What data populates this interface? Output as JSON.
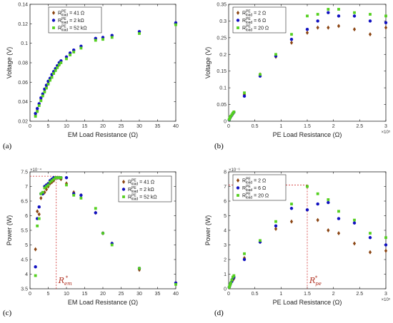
{
  "colors": {
    "s1": "#8B4513",
    "s2": "#1010c0",
    "s3": "#55d020",
    "guide": "#d03030"
  },
  "chart_data": [
    {
      "type": "scatter",
      "panel": "(a)",
      "xlabel": "EM Load Resistance (Ω)",
      "ylabel": "Voltage (V)",
      "xlim": [
        0,
        40
      ],
      "ylim": [
        0.02,
        0.14
      ],
      "xticks": [
        0,
        5,
        10,
        15,
        20,
        25,
        30,
        35,
        40
      ],
      "yticks": [
        0.02,
        0.04,
        0.06,
        0.08,
        0.1,
        0.12,
        0.14
      ],
      "ytick_labels": [
        "0.02",
        "0.04",
        "0.06",
        "0.08",
        "0.1",
        "0.12",
        "0.14"
      ],
      "legend_position": "top-left",
      "series": [
        {
          "name": "41 Ω",
          "color_key": "s1",
          "marker": "diamond",
          "x": [
            1.5,
            2,
            2.5,
            3,
            3.5,
            4,
            4.5,
            5,
            5.5,
            6,
            6.5,
            7,
            7.5,
            8,
            8.5,
            10,
            11,
            12,
            14,
            18,
            20,
            22.5,
            30,
            40
          ],
          "y": [
            0.026,
            0.031,
            0.037,
            0.042,
            0.047,
            0.051,
            0.055,
            0.059,
            0.063,
            0.066,
            0.07,
            0.073,
            0.076,
            0.078,
            0.081,
            0.085,
            0.089,
            0.092,
            0.096,
            0.104,
            0.105,
            0.107,
            0.111,
            0.12
          ]
        },
        {
          "name": "2 kΩ",
          "color_key": "s2",
          "marker": "circle",
          "x": [
            1.5,
            2,
            2.5,
            3,
            3.5,
            4,
            4.5,
            5,
            5.5,
            6,
            6.5,
            7,
            7.5,
            8,
            8.5,
            10,
            11,
            12,
            14,
            18,
            20,
            22.5,
            30,
            40
          ],
          "y": [
            0.028,
            0.033,
            0.038,
            0.044,
            0.048,
            0.053,
            0.057,
            0.061,
            0.064,
            0.068,
            0.071,
            0.074,
            0.077,
            0.08,
            0.082,
            0.086,
            0.09,
            0.093,
            0.097,
            0.105,
            0.106,
            0.108,
            0.112,
            0.121
          ]
        },
        {
          "name": "52 kΩ",
          "color_key": "s3",
          "marker": "square",
          "x": [
            1.5,
            2,
            2.5,
            3,
            3.5,
            4,
            4.5,
            5,
            5.5,
            6,
            6.5,
            7,
            7.5,
            8,
            8.5,
            10,
            11,
            12,
            14,
            18,
            20,
            22.5,
            30,
            40
          ],
          "y": [
            0.025,
            0.03,
            0.036,
            0.041,
            0.046,
            0.05,
            0.054,
            0.058,
            0.062,
            0.065,
            0.069,
            0.072,
            0.075,
            0.078,
            0.08,
            0.084,
            0.088,
            0.091,
            0.095,
            0.103,
            0.104,
            0.106,
            0.11,
            0.119
          ]
        }
      ]
    },
    {
      "type": "scatter",
      "panel": "(b)",
      "xlabel": "PE Load Resistance (Ω)",
      "ylabel": "Voltage (V)",
      "xlim": [
        0,
        3
      ],
      "ylim": [
        0,
        0.35
      ],
      "x_exponent": "×10⁵",
      "xticks": [
        0,
        0.5,
        1,
        1.5,
        2,
        2.5,
        3
      ],
      "yticks": [
        0,
        0.05,
        0.1,
        0.15,
        0.2,
        0.25,
        0.3,
        0.35
      ],
      "ytick_labels": [
        "0",
        "0.05",
        "0.1",
        "0.15",
        "0.2",
        "0.25",
        "0.3",
        "0.35"
      ],
      "legend_position": "top-left",
      "series": [
        {
          "name": "2 Ω",
          "color_key": "s1",
          "marker": "diamond",
          "x": [
            0.01,
            0.02,
            0.03,
            0.04,
            0.06,
            0.08,
            0.1,
            0.3,
            0.6,
            0.9,
            1.2,
            1.5,
            1.7,
            1.9,
            2.1,
            2.4,
            2.7,
            3.0
          ],
          "y": [
            0.004,
            0.007,
            0.01,
            0.013,
            0.017,
            0.022,
            0.026,
            0.08,
            0.14,
            0.193,
            0.235,
            0.265,
            0.28,
            0.28,
            0.285,
            0.275,
            0.26,
            0.28
          ]
        },
        {
          "name": "6 Ω",
          "color_key": "s2",
          "marker": "circle",
          "x": [
            0.01,
            0.02,
            0.03,
            0.04,
            0.06,
            0.08,
            0.1,
            0.3,
            0.6,
            0.9,
            1.2,
            1.5,
            1.7,
            1.9,
            2.1,
            2.4,
            2.7,
            3.0
          ],
          "y": [
            0.004,
            0.008,
            0.011,
            0.014,
            0.018,
            0.023,
            0.027,
            0.075,
            0.135,
            0.195,
            0.245,
            0.275,
            0.3,
            0.325,
            0.315,
            0.315,
            0.3,
            0.295
          ]
        },
        {
          "name": "20 Ω",
          "color_key": "s3",
          "marker": "square",
          "x": [
            0.01,
            0.02,
            0.03,
            0.04,
            0.06,
            0.08,
            0.1,
            0.3,
            0.6,
            0.9,
            1.2,
            1.5,
            1.7,
            1.9,
            2.1,
            2.4,
            2.7,
            3.0
          ],
          "y": [
            0.005,
            0.009,
            0.012,
            0.015,
            0.019,
            0.024,
            0.028,
            0.085,
            0.14,
            0.2,
            0.26,
            0.315,
            0.32,
            0.335,
            0.335,
            0.325,
            0.32,
            0.315
          ]
        }
      ]
    },
    {
      "type": "scatter",
      "panel": "(c)",
      "xlabel": "EM Load Resistance (Ω)",
      "ylabel": "Power (W)",
      "xlim": [
        0,
        40
      ],
      "ylim": [
        3.5,
        7.5
      ],
      "y_exponent": "×10⁻⁴",
      "xticks": [
        0,
        5,
        10,
        15,
        20,
        25,
        30,
        35,
        40
      ],
      "yticks": [
        3.5,
        4,
        4.5,
        5,
        5.5,
        6,
        6.5,
        7,
        7.5
      ],
      "ytick_labels": [
        "3.5",
        "4",
        "4.5",
        "5",
        "5.5",
        "6",
        "6.5",
        "7",
        "7.5"
      ],
      "legend_position": "top-right",
      "optimum": {
        "x": 7.2,
        "y": 7.35,
        "label": "R",
        "label_sub": "em",
        "label_sup": "*"
      },
      "series": [
        {
          "name": "41 Ω",
          "color_key": "s1",
          "marker": "diamond",
          "x": [
            1.5,
            2,
            2.5,
            3,
            3.5,
            4,
            4.5,
            5,
            5.5,
            6,
            6.5,
            7,
            7.5,
            8,
            8.5,
            10,
            12,
            14,
            18,
            20,
            22.5,
            30,
            40
          ],
          "y": [
            4.85,
            6.15,
            6.05,
            6.6,
            6.75,
            6.8,
            6.9,
            7.0,
            7.1,
            7.15,
            7.2,
            7.3,
            7.3,
            7.3,
            7.25,
            7.1,
            6.8,
            6.7,
            6.1,
            5.4,
            5.05,
            4.15,
            3.7
          ]
        },
        {
          "name": "2 kΩ",
          "color_key": "s2",
          "marker": "circle",
          "x": [
            1.5,
            2,
            2.5,
            3,
            3.5,
            4,
            4.5,
            5,
            5.5,
            6,
            6.5,
            7,
            7.5,
            8,
            8.5,
            10,
            12,
            14,
            18,
            20,
            22.5,
            30,
            40
          ],
          "y": [
            4.25,
            5.9,
            6.3,
            6.75,
            6.75,
            7.0,
            7.05,
            7.1,
            7.2,
            7.25,
            7.3,
            7.3,
            7.3,
            7.3,
            7.3,
            7.3,
            6.75,
            6.7,
            6.1,
            5.4,
            5.05,
            4.2,
            3.7
          ]
        },
        {
          "name": "52 kΩ",
          "color_key": "s3",
          "marker": "square",
          "x": [
            1.5,
            2,
            2.5,
            3,
            3.5,
            4,
            4.5,
            5,
            5.5,
            6,
            6.5,
            7,
            7.5,
            8,
            8.5,
            10,
            12,
            14,
            18,
            20,
            22.5,
            30,
            40
          ],
          "y": [
            3.95,
            5.65,
            5.9,
            6.75,
            6.8,
            6.95,
            7.0,
            7.05,
            7.15,
            7.2,
            7.25,
            7.3,
            7.3,
            7.3,
            7.3,
            7.05,
            6.7,
            6.6,
            6.25,
            5.4,
            5.0,
            4.2,
            3.65
          ]
        }
      ]
    },
    {
      "type": "scatter",
      "panel": "(d)",
      "xlabel": "PE Load Resistance (Ω)",
      "ylabel": "Power (W)",
      "xlim": [
        0,
        3
      ],
      "ylim": [
        0,
        8
      ],
      "x_exponent": "×10⁵",
      "y_exponent": "×10⁻⁶",
      "xticks": [
        0,
        0.5,
        1,
        1.5,
        2,
        2.5,
        3
      ],
      "yticks": [
        0,
        1,
        2,
        3,
        4,
        5,
        6,
        7,
        8
      ],
      "ytick_labels": [
        "0",
        "1",
        "2",
        "3",
        "4",
        "5",
        "6",
        "7",
        "8"
      ],
      "legend_position": "top-left",
      "optimum": {
        "x": 1.5,
        "y": 7.1,
        "label": "R",
        "label_sub": "pe",
        "label_sup": "*"
      },
      "series": [
        {
          "name": "2 Ω",
          "color_key": "s1",
          "marker": "diamond",
          "x": [
            0.01,
            0.02,
            0.03,
            0.04,
            0.06,
            0.08,
            0.1,
            0.3,
            0.6,
            0.9,
            1.2,
            1.5,
            1.7,
            1.9,
            2.1,
            2.4,
            2.7,
            3.0
          ],
          "y": [
            0.1,
            0.2,
            0.3,
            0.4,
            0.5,
            0.6,
            0.7,
            2.1,
            3.2,
            4.1,
            4.6,
            7.0,
            4.7,
            4.0,
            3.8,
            3.1,
            2.5,
            2.6
          ]
        },
        {
          "name": "6 Ω",
          "color_key": "s2",
          "marker": "circle",
          "x": [
            0.01,
            0.02,
            0.03,
            0.04,
            0.06,
            0.08,
            0.1,
            0.3,
            0.6,
            0.9,
            1.2,
            1.5,
            1.7,
            1.9,
            2.1,
            2.4,
            2.7,
            3.0
          ],
          "y": [
            0.1,
            0.2,
            0.3,
            0.4,
            0.5,
            0.7,
            0.8,
            2.0,
            3.2,
            4.3,
            5.5,
            5.4,
            5.8,
            5.9,
            4.8,
            4.5,
            3.5,
            3.0
          ]
        },
        {
          "name": "20 Ω",
          "color_key": "s3",
          "marker": "square",
          "x": [
            0.01,
            0.02,
            0.03,
            0.04,
            0.06,
            0.08,
            0.1,
            0.3,
            0.6,
            0.9,
            1.2,
            1.5,
            1.7,
            1.9,
            2.1,
            2.4,
            2.7,
            3.0
          ],
          "y": [
            0.1,
            0.2,
            0.3,
            0.4,
            0.6,
            0.8,
            0.9,
            2.4,
            3.3,
            4.6,
            5.8,
            7.0,
            6.5,
            6.1,
            5.3,
            4.7,
            3.8,
            3.5
          ]
        }
      ]
    }
  ]
}
